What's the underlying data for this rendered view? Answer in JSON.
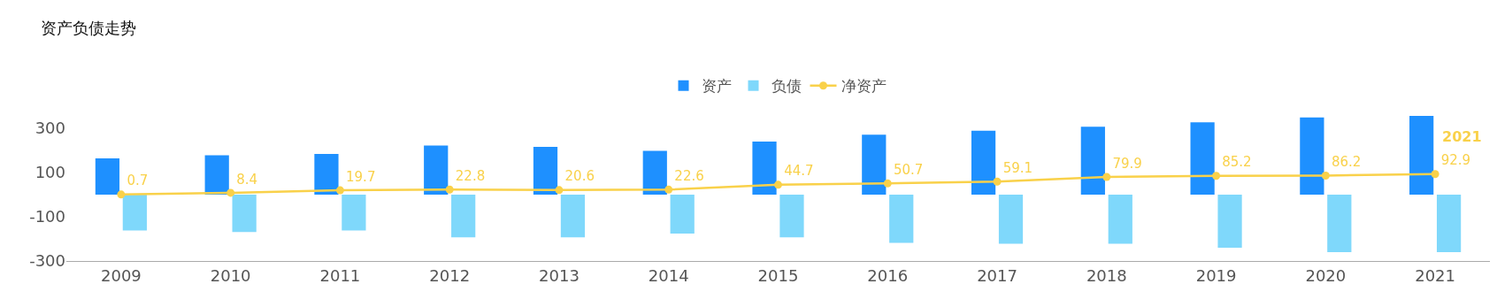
{
  "chart_data": {
    "type": "bar",
    "title": "资产负债走势",
    "categories": [
      "2009",
      "2010",
      "2011",
      "2012",
      "2013",
      "2014",
      "2015",
      "2016",
      "2017",
      "2018",
      "2019",
      "2020",
      "2021"
    ],
    "series": [
      {
        "name": "资产",
        "color": "#1e90ff",
        "values": [
          164,
          178,
          184,
          222,
          216,
          198,
          240,
          271,
          289,
          307,
          327,
          349,
          356
        ]
      },
      {
        "name": "负债",
        "color": "#7fd8fb",
        "values": [
          -162,
          -169,
          -162,
          -193,
          -193,
          -176,
          -193,
          -218,
          -222,
          -222,
          -240,
          -260,
          -260
        ]
      },
      {
        "name": "净资产",
        "type": "line",
        "color": "#f9d14a",
        "marker": "circle",
        "line_style": "solid",
        "data_labels": true,
        "values": [
          0.7,
          8.4,
          19.7,
          22.8,
          20.6,
          22.6,
          44.7,
          50.7,
          59.1,
          79.9,
          85.2,
          86.2,
          92.9
        ]
      }
    ],
    "annotations": [
      {
        "text": "2021",
        "x": "2021",
        "y": 92.9
      }
    ],
    "ylim": [
      -300,
      360
    ],
    "yticks": [
      -300,
      -100,
      100,
      300
    ],
    "legend": "top"
  }
}
